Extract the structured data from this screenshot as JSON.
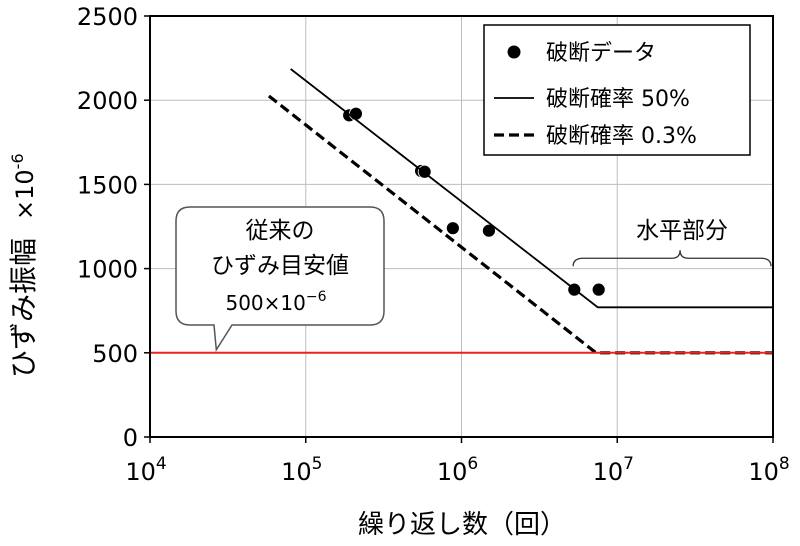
{
  "chart_data": {
    "type": "scatter",
    "xscale": "log",
    "xlim": [
      10000,
      100000000
    ],
    "ylim": [
      0,
      2500
    ],
    "yticks": [
      0,
      500,
      1000,
      1500,
      2000,
      2500
    ],
    "xticks": [
      {
        "base": "10",
        "exp": "4",
        "value": 10000
      },
      {
        "base": "10",
        "exp": "5",
        "value": 100000
      },
      {
        "base": "10",
        "exp": "6",
        "value": 1000000
      },
      {
        "base": "10",
        "exp": "7",
        "value": 10000000
      },
      {
        "base": "10",
        "exp": "8",
        "value": 100000000
      }
    ],
    "xlabel": "繰り返し数（回）",
    "ylabel": "ひずみ振幅",
    "ylabel_unit": "×10",
    "ylabel_exp": "-6",
    "grid": true,
    "legend": {
      "position": "top-right",
      "items": [
        {
          "label": "破断データ",
          "style": "marker"
        },
        {
          "label": "破断確率 50%",
          "style": "solid"
        },
        {
          "label": "破断確率 0.3%",
          "style": "dashed"
        }
      ]
    },
    "series": [
      {
        "name": "破断データ",
        "kind": "points",
        "points": [
          {
            "x": 190000,
            "y": 1910
          },
          {
            "x": 210000,
            "y": 1920
          },
          {
            "x": 550000,
            "y": 1580
          },
          {
            "x": 580000,
            "y": 1575
          },
          {
            "x": 880000,
            "y": 1240
          },
          {
            "x": 1500000,
            "y": 1225
          },
          {
            "x": 5300000,
            "y": 875
          },
          {
            "x": 7600000,
            "y": 875
          }
        ]
      },
      {
        "name": "破断確率 50%",
        "kind": "line",
        "style": "solid",
        "points": [
          {
            "x": 80000,
            "y": 2185
          },
          {
            "x": 7500000,
            "y": 770
          },
          {
            "x": 100000000,
            "y": 770
          }
        ]
      },
      {
        "name": "破断確率 0.3%",
        "kind": "line",
        "style": "dashed",
        "points": [
          {
            "x": 58000,
            "y": 2025
          },
          {
            "x": 7300000,
            "y": 500
          },
          {
            "x": 100000000,
            "y": 500
          }
        ]
      },
      {
        "name": "",
        "kind": "hline",
        "color": "#e8241c",
        "y": 500
      }
    ],
    "annotations": {
      "callout": {
        "line1": "従来の",
        "line2": "ひずみ目安値",
        "line3_base": "500×10",
        "line3_exp": "−6",
        "points_to": {
          "x": 55000,
          "y": 500
        }
      },
      "brace": {
        "label": "水平部分",
        "x_from": 7000000,
        "x_to": 100000000,
        "y": 1020
      }
    }
  }
}
